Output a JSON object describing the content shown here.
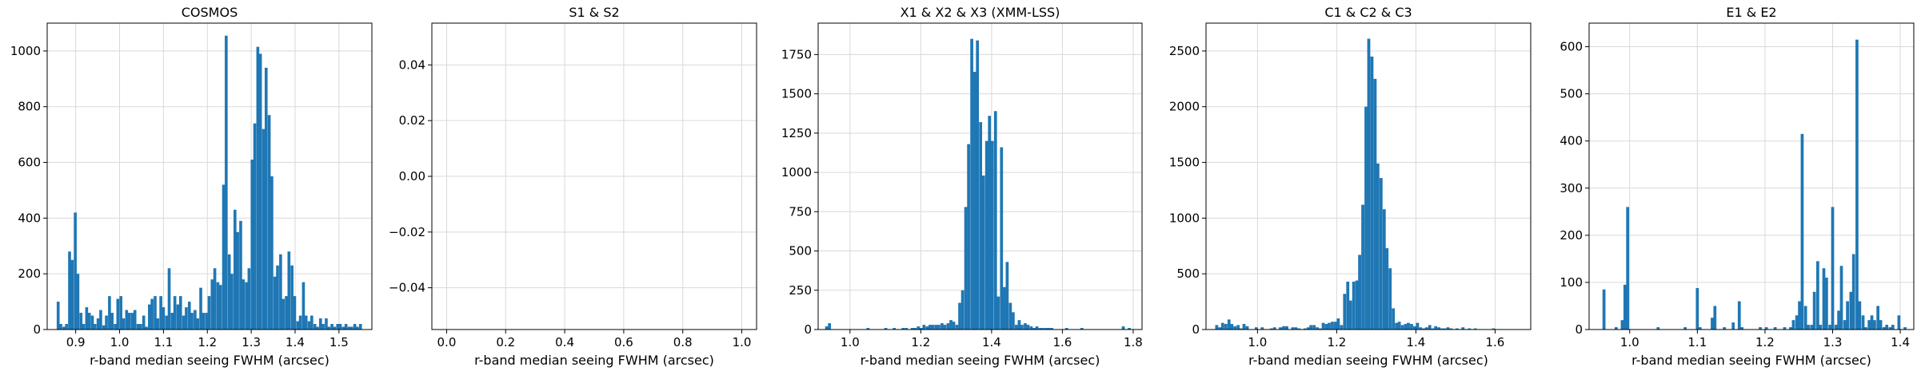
{
  "colors": {
    "bar": "#1f77b4",
    "grid": "#d9d9d9",
    "axis": "#000000"
  },
  "chart_data": [
    {
      "type": "bar",
      "title": "COSMOS",
      "xlabel": "r-band median seeing FWHM (arcsec)",
      "ylabel": "",
      "xlim": [
        0.835,
        1.575
      ],
      "ylim": [
        0,
        1100
      ],
      "grid": true,
      "xticks": [
        0.9,
        1.0,
        1.1,
        1.2,
        1.3,
        1.4,
        1.5
      ],
      "xtick_labels": [
        "0.9",
        "1.0",
        "1.1",
        "1.2",
        "1.3",
        "1.4",
        "1.5"
      ],
      "yticks": [
        0,
        200,
        400,
        600,
        800,
        1000
      ],
      "ytick_labels": [
        "0",
        "200",
        "400",
        "600",
        "800",
        "1000"
      ],
      "bin_width": 0.0066,
      "x": [
        0.86,
        0.866,
        0.873,
        0.879,
        0.886,
        0.892,
        0.899,
        0.905,
        0.912,
        0.918,
        0.925,
        0.931,
        0.938,
        0.944,
        0.951,
        0.957,
        0.964,
        0.97,
        0.977,
        0.983,
        0.99,
        0.996,
        1.003,
        1.009,
        1.016,
        1.022,
        1.029,
        1.035,
        1.042,
        1.048,
        1.055,
        1.061,
        1.068,
        1.074,
        1.081,
        1.087,
        1.094,
        1.1,
        1.107,
        1.113,
        1.12,
        1.126,
        1.133,
        1.139,
        1.146,
        1.152,
        1.159,
        1.165,
        1.172,
        1.178,
        1.185,
        1.191,
        1.198,
        1.204,
        1.211,
        1.217,
        1.224,
        1.23,
        1.237,
        1.243,
        1.25,
        1.256,
        1.263,
        1.269,
        1.276,
        1.282,
        1.289,
        1.295,
        1.302,
        1.308,
        1.315,
        1.321,
        1.328,
        1.334,
        1.341,
        1.347,
        1.354,
        1.36,
        1.367,
        1.373,
        1.38,
        1.386,
        1.393,
        1.399,
        1.406,
        1.412,
        1.419,
        1.425,
        1.432,
        1.438,
        1.445,
        1.451,
        1.458,
        1.464,
        1.471,
        1.477,
        1.484,
        1.49,
        1.497,
        1.503,
        1.51,
        1.516,
        1.523,
        1.529,
        1.536,
        1.542,
        1.549
      ],
      "values": [
        100,
        20,
        10,
        20,
        280,
        250,
        420,
        200,
        60,
        20,
        80,
        60,
        50,
        20,
        40,
        70,
        15,
        50,
        120,
        60,
        20,
        110,
        120,
        40,
        70,
        60,
        60,
        70,
        20,
        20,
        50,
        10,
        90,
        110,
        120,
        40,
        120,
        80,
        50,
        220,
        60,
        120,
        90,
        120,
        50,
        80,
        100,
        60,
        70,
        40,
        150,
        60,
        60,
        120,
        180,
        220,
        170,
        160,
        520,
        1055,
        270,
        200,
        430,
        350,
        390,
        180,
        170,
        220,
        610,
        740,
        1015,
        990,
        720,
        940,
        770,
        550,
        190,
        230,
        270,
        110,
        120,
        280,
        230,
        120,
        30,
        50,
        170,
        50,
        30,
        50,
        20,
        10,
        40,
        20,
        40,
        10,
        20,
        10,
        20,
        20,
        10,
        20,
        10,
        10,
        20,
        10,
        20
      ]
    },
    {
      "type": "bar",
      "title": "S1 & S2",
      "xlabel": "r-band median seeing FWHM (arcsec)",
      "ylabel": "",
      "xlim": [
        -0.05,
        1.05
      ],
      "ylim": [
        -0.055,
        0.055
      ],
      "grid": true,
      "xticks": [
        0.0,
        0.2,
        0.4,
        0.6,
        0.8,
        1.0
      ],
      "xtick_labels": [
        "0.0",
        "0.2",
        "0.4",
        "0.6",
        "0.8",
        "1.0"
      ],
      "yticks": [
        -0.04,
        -0.02,
        0.0,
        0.02,
        0.04
      ],
      "ytick_labels": [
        "−0.04",
        "−0.02",
        "0.00",
        "0.02",
        "0.04"
      ],
      "bin_width": 0.01,
      "x": [],
      "values": []
    },
    {
      "type": "bar",
      "title": "X1 & X2 & X3 (XMM-LSS)",
      "xlabel": "r-band median seeing FWHM (arcsec)",
      "ylabel": "",
      "xlim": [
        0.91,
        1.825
      ],
      "ylim": [
        0,
        1950
      ],
      "grid": true,
      "xticks": [
        1.0,
        1.2,
        1.4,
        1.6,
        1.8
      ],
      "xtick_labels": [
        "1.0",
        "1.2",
        "1.4",
        "1.6",
        "1.8"
      ],
      "yticks": [
        0,
        250,
        500,
        750,
        1000,
        1250,
        1500,
        1750
      ],
      "ytick_labels": [
        "0",
        "250",
        "500",
        "750",
        "1000",
        "1250",
        "1500",
        "1750"
      ],
      "bin_width": 0.0084,
      "x": [
        0.934,
        0.942,
        1.051,
        1.101,
        1.125,
        1.15,
        1.159,
        1.176,
        1.184,
        1.193,
        1.201,
        1.209,
        1.218,
        1.226,
        1.234,
        1.243,
        1.251,
        1.26,
        1.268,
        1.277,
        1.285,
        1.293,
        1.302,
        1.31,
        1.318,
        1.327,
        1.335,
        1.344,
        1.352,
        1.36,
        1.369,
        1.377,
        1.386,
        1.394,
        1.402,
        1.411,
        1.419,
        1.428,
        1.436,
        1.444,
        1.453,
        1.461,
        1.47,
        1.478,
        1.486,
        1.495,
        1.503,
        1.512,
        1.52,
        1.528,
        1.537,
        1.545,
        1.554,
        1.562,
        1.57,
        1.612,
        1.655,
        1.772,
        1.789
      ],
      "values": [
        20,
        40,
        10,
        10,
        10,
        10,
        10,
        10,
        10,
        20,
        10,
        30,
        20,
        30,
        30,
        30,
        30,
        40,
        30,
        40,
        60,
        50,
        30,
        170,
        250,
        780,
        1180,
        1850,
        1640,
        1840,
        1320,
        980,
        1200,
        1360,
        1200,
        1390,
        210,
        1160,
        270,
        430,
        170,
        110,
        30,
        60,
        30,
        40,
        30,
        20,
        10,
        20,
        10,
        10,
        10,
        10,
        10,
        10,
        10,
        20,
        10
      ]
    },
    {
      "type": "bar",
      "title": "C1 & C2 & C3",
      "xlabel": "r-band median seeing FWHM (arcsec)",
      "ylabel": "",
      "xlim": [
        0.87,
        1.69
      ],
      "ylim": [
        0,
        2750
      ],
      "grid": true,
      "xticks": [
        1.0,
        1.2,
        1.4,
        1.6
      ],
      "xtick_labels": [
        "1.0",
        "1.2",
        "1.4",
        "1.6"
      ],
      "yticks": [
        0,
        500,
        1000,
        1500,
        2000,
        2500
      ],
      "ytick_labels": [
        "0",
        "500",
        "1000",
        "1500",
        "2000",
        "2500"
      ],
      "bin_width": 0.0077,
      "x": [
        0.897,
        0.905,
        0.912,
        0.92,
        0.928,
        0.935,
        0.943,
        0.951,
        0.958,
        0.966,
        0.974,
        0.997,
        1.012,
        1.035,
        1.043,
        1.058,
        1.066,
        1.074,
        1.089,
        1.097,
        1.105,
        1.12,
        1.128,
        1.135,
        1.143,
        1.151,
        1.158,
        1.166,
        1.174,
        1.181,
        1.189,
        1.197,
        1.204,
        1.212,
        1.22,
        1.228,
        1.235,
        1.243,
        1.251,
        1.258,
        1.266,
        1.274,
        1.281,
        1.289,
        1.297,
        1.304,
        1.312,
        1.32,
        1.327,
        1.335,
        1.343,
        1.351,
        1.358,
        1.366,
        1.374,
        1.381,
        1.389,
        1.397,
        1.404,
        1.412,
        1.42,
        1.427,
        1.435,
        1.443,
        1.45,
        1.458,
        1.466,
        1.473,
        1.481,
        1.489,
        1.504,
        1.519,
        1.535,
        1.55,
        1.596
      ],
      "values": [
        40,
        20,
        60,
        50,
        90,
        50,
        30,
        40,
        10,
        50,
        30,
        20,
        20,
        10,
        20,
        20,
        30,
        30,
        20,
        20,
        10,
        10,
        20,
        40,
        40,
        20,
        10,
        60,
        50,
        60,
        70,
        70,
        100,
        40,
        320,
        430,
        260,
        430,
        440,
        670,
        1120,
        2000,
        2610,
        2450,
        2250,
        1490,
        1360,
        1080,
        730,
        550,
        190,
        60,
        70,
        40,
        50,
        60,
        50,
        30,
        60,
        20,
        10,
        20,
        40,
        10,
        30,
        20,
        10,
        10,
        20,
        10,
        10,
        20,
        10,
        10,
        10
      ]
    },
    {
      "type": "bar",
      "title": "E1 & E2",
      "xlabel": "r-band median seeing FWHM (arcsec)",
      "ylabel": "",
      "xlim": [
        0.94,
        1.42
      ],
      "ylim": [
        0,
        650
      ],
      "grid": true,
      "xticks": [
        1.0,
        1.1,
        1.2,
        1.3,
        1.4
      ],
      "xtick_labels": [
        "1.0",
        "1.1",
        "1.2",
        "1.3",
        "1.4"
      ],
      "yticks": [
        0,
        100,
        200,
        300,
        400,
        500,
        600
      ],
      "ytick_labels": [
        "0",
        "100",
        "200",
        "300",
        "400",
        "500",
        "600"
      ],
      "bin_width": 0.0044,
      "x": [
        0.962,
        0.98,
        0.989,
        0.993,
        0.997,
        1.042,
        1.082,
        1.1,
        1.104,
        1.122,
        1.126,
        1.14,
        1.153,
        1.162,
        1.166,
        1.193,
        1.202,
        1.215,
        1.229,
        1.238,
        1.242,
        1.247,
        1.251,
        1.255,
        1.26,
        1.264,
        1.269,
        1.273,
        1.278,
        1.282,
        1.287,
        1.291,
        1.296,
        1.3,
        1.305,
        1.309,
        1.313,
        1.318,
        1.322,
        1.327,
        1.331,
        1.336,
        1.34,
        1.345,
        1.349,
        1.354,
        1.358,
        1.362,
        1.367,
        1.371,
        1.376,
        1.38,
        1.385,
        1.389,
        1.398,
        1.407
      ],
      "values": [
        85,
        5,
        20,
        95,
        260,
        5,
        5,
        88,
        5,
        25,
        50,
        5,
        15,
        60,
        5,
        5,
        5,
        5,
        5,
        5,
        20,
        30,
        60,
        415,
        50,
        10,
        10,
        80,
        145,
        10,
        130,
        110,
        10,
        260,
        10,
        40,
        135,
        20,
        60,
        80,
        160,
        615,
        60,
        30,
        5,
        20,
        30,
        20,
        50,
        20,
        5,
        10,
        5,
        10,
        30,
        5
      ]
    }
  ]
}
